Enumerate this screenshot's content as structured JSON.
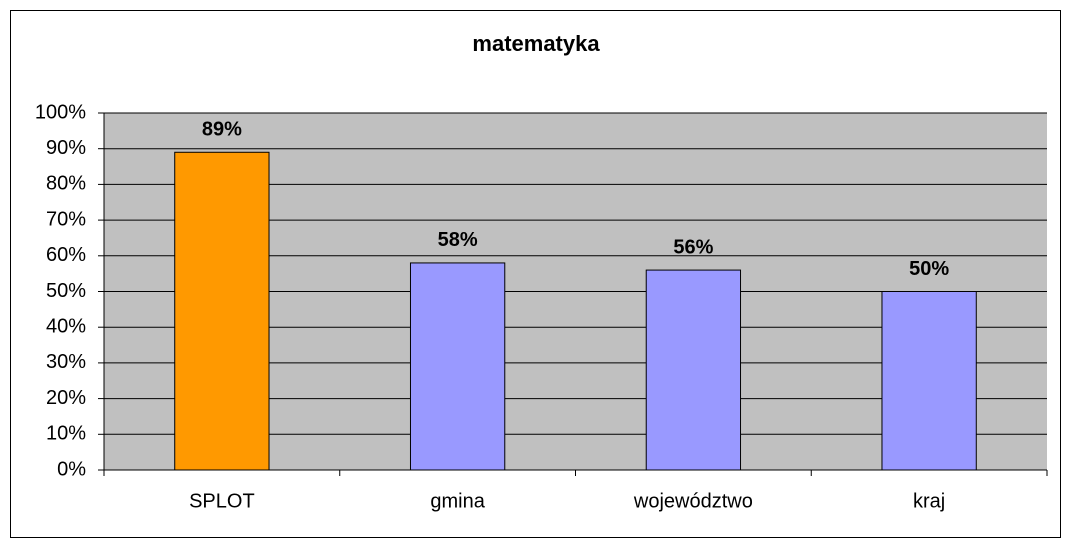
{
  "chart_data": {
    "type": "bar",
    "title": "matematyka",
    "categories": [
      "SPLOT",
      "gmina",
      "województwo",
      "kraj"
    ],
    "values": [
      89,
      58,
      56,
      50
    ],
    "value_labels": [
      "89%",
      "58%",
      "56%",
      "50%"
    ],
    "colors": [
      "#ff9900",
      "#9999ff",
      "#9999ff",
      "#9999ff"
    ],
    "ylim": [
      0,
      100
    ],
    "yticks": [
      {
        "value": 0,
        "label": "0%"
      },
      {
        "value": 10,
        "label": "10%"
      },
      {
        "value": 20,
        "label": "20%"
      },
      {
        "value": 30,
        "label": "30%"
      },
      {
        "value": 40,
        "label": "40%"
      },
      {
        "value": 50,
        "label": "50%"
      },
      {
        "value": 60,
        "label": "60%"
      },
      {
        "value": 70,
        "label": "70%"
      },
      {
        "value": 80,
        "label": "80%"
      },
      {
        "value": 90,
        "label": "90%"
      },
      {
        "value": 100,
        "label": "100%"
      }
    ],
    "grid": true
  }
}
